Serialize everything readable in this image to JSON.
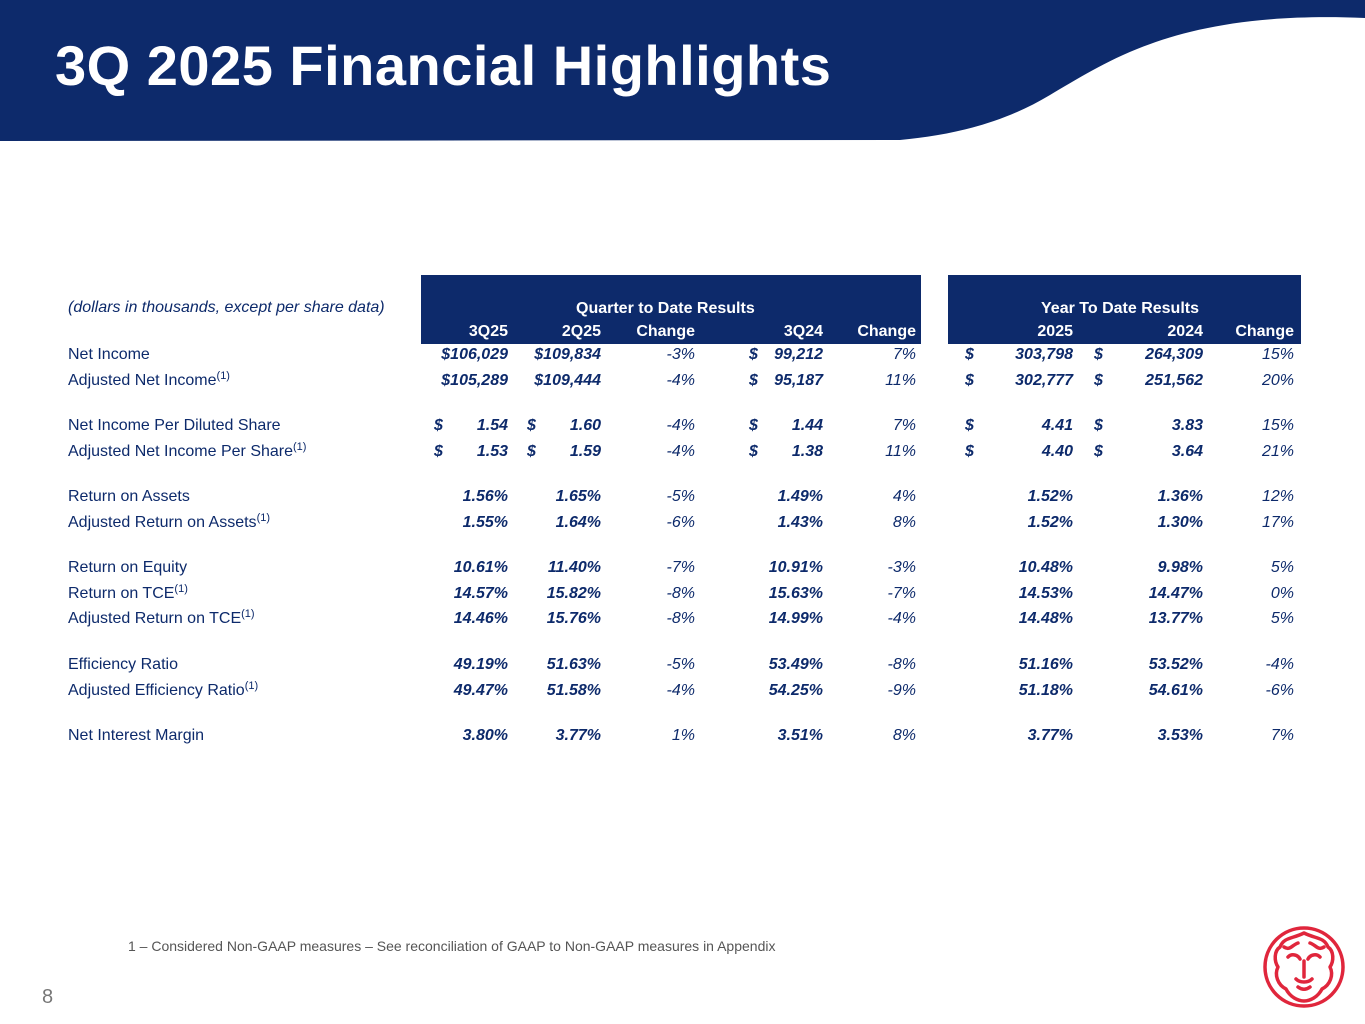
{
  "title": "3Q 2025 Financial Highlights",
  "colors": {
    "navy": "#0d2a6b",
    "logo_red": "#e0263c"
  },
  "table": {
    "note": "(dollars in thousands, except per share data)",
    "qtd_header": "Quarter to Date Results",
    "ytd_header": "Year To Date Results",
    "columns": [
      "3Q25",
      "2Q25",
      "Change",
      "3Q24",
      "Change",
      "2025",
      "2024",
      "Change"
    ],
    "rows": [
      {
        "label": "Net Income",
        "sup": "",
        "dollars": [
          "",
          "",
          "$",
          "$",
          "$"
        ],
        "values": [
          "$106,029",
          "$109,834",
          "-3%",
          "99,212",
          "7%",
          "303,798",
          "264,309",
          "15%"
        ]
      },
      {
        "label": "Adjusted Net Income",
        "sup": "(1)",
        "dollars": [
          "",
          "",
          "$",
          "$",
          "$"
        ],
        "values": [
          "$105,289",
          "$109,444",
          "-4%",
          "95,187",
          "11%",
          "302,777",
          "251,562",
          "20%"
        ]
      },
      {
        "label": "Net Income Per Diluted Share",
        "sup": "",
        "dollars": [
          "$",
          "$",
          "$",
          "$",
          "$"
        ],
        "values": [
          "1.54",
          "1.60",
          "-4%",
          "1.44",
          "7%",
          "4.41",
          "3.83",
          "15%"
        ]
      },
      {
        "label": "Adjusted Net Income Per Share",
        "sup": "(1)",
        "dollars": [
          "$",
          "$",
          "$",
          "$",
          "$"
        ],
        "values": [
          "1.53",
          "1.59",
          "-4%",
          "1.38",
          "11%",
          "4.40",
          "3.64",
          "21%"
        ]
      },
      {
        "label": "Return on Assets",
        "sup": "",
        "dollars": [
          "",
          "",
          "",
          "",
          ""
        ],
        "values": [
          "1.56%",
          "1.65%",
          "-5%",
          "1.49%",
          "4%",
          "1.52%",
          "1.36%",
          "12%"
        ]
      },
      {
        "label": "Adjusted Return on Assets",
        "sup": "(1)",
        "dollars": [
          "",
          "",
          "",
          "",
          ""
        ],
        "values": [
          "1.55%",
          "1.64%",
          "-6%",
          "1.43%",
          "8%",
          "1.52%",
          "1.30%",
          "17%"
        ]
      },
      {
        "label": "Return on Equity",
        "sup": "",
        "dollars": [
          "",
          "",
          "",
          "",
          ""
        ],
        "values": [
          "10.61%",
          "11.40%",
          "-7%",
          "10.91%",
          "-3%",
          "10.48%",
          "9.98%",
          "5%"
        ]
      },
      {
        "label": "Return on TCE",
        "sup": "(1)",
        "dollars": [
          "",
          "",
          "",
          "",
          ""
        ],
        "values": [
          "14.57%",
          "15.82%",
          "-8%",
          "15.63%",
          "-7%",
          "14.53%",
          "14.47%",
          "0%"
        ]
      },
      {
        "label": "Adjusted Return on TCE",
        "sup": "(1)",
        "dollars": [
          "",
          "",
          "",
          "",
          ""
        ],
        "values": [
          "14.46%",
          "15.76%",
          "-8%",
          "14.99%",
          "-4%",
          "14.48%",
          "13.77%",
          "5%"
        ]
      },
      {
        "label": "Efficiency Ratio",
        "sup": "",
        "dollars": [
          "",
          "",
          "",
          "",
          ""
        ],
        "values": [
          "49.19%",
          "51.63%",
          "-5%",
          "53.49%",
          "-8%",
          "51.16%",
          "53.52%",
          "-4%"
        ]
      },
      {
        "label": "Adjusted Efficiency Ratio",
        "sup": "(1)",
        "dollars": [
          "",
          "",
          "",
          "",
          ""
        ],
        "values": [
          "49.47%",
          "51.58%",
          "-4%",
          "54.25%",
          "-9%",
          "51.18%",
          "54.61%",
          "-6%"
        ]
      },
      {
        "label": "Net Interest Margin",
        "sup": "",
        "dollars": [
          "",
          "",
          "",
          "",
          ""
        ],
        "values": [
          "3.80%",
          "3.77%",
          "1%",
          "3.51%",
          "8%",
          "3.77%",
          "3.53%",
          "7%"
        ]
      }
    ]
  },
  "footnote": "1 – Considered Non-GAAP measures – See reconciliation of GAAP to Non-GAAP measures in Appendix",
  "page_number": "8",
  "logo_icon": "lion-head-icon"
}
